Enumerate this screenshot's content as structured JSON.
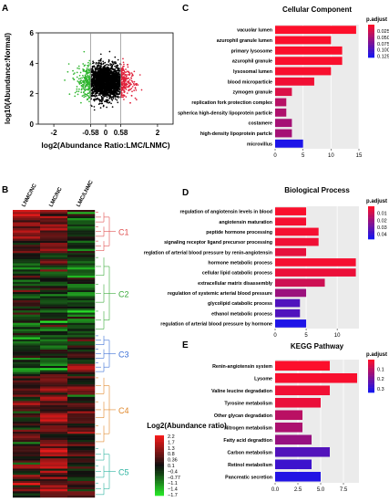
{
  "panels": {
    "A": {
      "letter": "A"
    },
    "B": {
      "letter": "B"
    },
    "C": {
      "letter": "C"
    },
    "D": {
      "letter": "D"
    },
    "E": {
      "letter": "E"
    }
  },
  "chart_data": [
    {
      "id": "A",
      "type": "scatter",
      "xlabel": "log2(Abundance Ratio:LMC/LNMC)",
      "ylabel": "log10(Abundance:Normal)",
      "xlim": [
        -2.6,
        2.6
      ],
      "ylim": [
        0,
        6
      ],
      "x_ticks": [
        "-2",
        "-0.58",
        "0",
        "0.58",
        "2"
      ],
      "x_tick_values": [
        -2,
        -0.58,
        0,
        0.58,
        2
      ],
      "y_ticks": [
        "0",
        "2",
        "4",
        "6"
      ],
      "y_tick_values": [
        0,
        2,
        4,
        6
      ],
      "thresholds": [
        -0.58,
        0.58
      ],
      "colors": {
        "down": "#2fb52f",
        "up": "#e0203a",
        "ns": "#000000"
      }
    },
    {
      "id": "B",
      "type": "heatmap",
      "columns": [
        "LNMC/NC",
        "LMC/NC",
        "LMC/LNMC"
      ],
      "clusters": [
        {
          "name": "C1",
          "color": "#e05050",
          "start": 0.0,
          "end": 0.15
        },
        {
          "name": "C2",
          "color": "#3aaa3a",
          "start": 0.15,
          "end": 0.43
        },
        {
          "name": "C3",
          "color": "#3b6fd6",
          "start": 0.43,
          "end": 0.57
        },
        {
          "name": "C4",
          "color": "#e0872a",
          "start": 0.57,
          "end": 0.82
        },
        {
          "name": "C5",
          "color": "#2bb3a0",
          "start": 0.82,
          "end": 1.0
        }
      ],
      "legend_title": "Log2(Abundance ratio)",
      "legend_ticks": [
        "2.2",
        "1.7",
        "1.3",
        "0.8",
        "0.36",
        "0.1",
        "−0.4",
        "−0.77",
        "−1.1",
        "−1.4",
        "−1.7"
      ]
    },
    {
      "id": "C",
      "type": "bar",
      "title": "Cellular Component",
      "legend_title": "p.adjust",
      "categories": [
        "vacuolar lumen",
        "azurophil granule lumen",
        "primary lysosome",
        "azurophil granule",
        "lysosomal lumen",
        "blood microparticle",
        "zymogen granule",
        "replication fork protection complex",
        "spherica high-density lipoprotein particle",
        "costamere",
        "high-density lipoprotein partcle",
        "microvillus"
      ],
      "values": [
        14.5,
        10,
        12,
        12,
        10,
        7,
        3,
        2,
        2,
        3,
        3,
        5
      ],
      "padj": [
        0.001,
        0.002,
        0.002,
        0.003,
        0.004,
        0.008,
        0.02,
        0.04,
        0.045,
        0.05,
        0.05,
        0.125
      ],
      "xlim": [
        0,
        15
      ],
      "x_ticks": [
        "0",
        "5",
        "10",
        "15"
      ],
      "x_tick_values": [
        0,
        5,
        10,
        15
      ],
      "legend_ticks": [
        "0.025",
        "0.050",
        "0.075",
        "0.100",
        "0.125"
      ],
      "legend_tick_values": [
        0.025,
        0.05,
        0.075,
        0.1,
        0.125
      ],
      "color_range": [
        0.0,
        0.13
      ]
    },
    {
      "id": "D",
      "type": "bar",
      "title": "Biological Process",
      "legend_title": "p.adjust",
      "categories": [
        "regulation of angiotensin levels in blood",
        "angiotensin maturation",
        "peptide hormone processing",
        "signaling receptor ligand precursor processing",
        "reglation of arterial blood pressure by renin-angiotensin",
        "hormone metabolic process",
        "cellular lipid catabolic process",
        "extracellular matrix disassembly",
        "regulation of systemic arterial blood pressure",
        "glycolipid catabolic process",
        "ethanol metabolic process",
        "regulation of arterial blood pressure by hormone"
      ],
      "values": [
        5,
        5,
        7,
        7,
        5,
        13,
        13,
        8,
        5,
        4,
        4,
        5
      ],
      "padj": [
        0.001,
        0.002,
        0.002,
        0.003,
        0.005,
        0.002,
        0.004,
        0.01,
        0.02,
        0.035,
        0.035,
        0.045
      ],
      "xlim": [
        0,
        13.5
      ],
      "x_ticks": [
        "0",
        "5",
        "10"
      ],
      "x_tick_values": [
        0,
        5,
        10
      ],
      "legend_ticks": [
        "0.01",
        "0.02",
        "0.03",
        "0.04"
      ],
      "legend_tick_values": [
        0.01,
        0.02,
        0.03,
        0.04
      ],
      "color_range": [
        0.0,
        0.047
      ]
    },
    {
      "id": "E",
      "type": "bar",
      "title": "KEGG Pathway",
      "legend_title": "p.adjust",
      "categories": [
        "Renin-angiotensin system",
        "Lysome",
        "Valine leucine degradation",
        "Tyrosine metabolism",
        "Other glycan degradation",
        "Nitrogen metabolism",
        "Fatty acid degradtion",
        "Carbon metabolism",
        "Retinol metabolism",
        "Pancreatic secretion"
      ],
      "values": [
        6,
        9,
        6,
        5,
        3,
        3,
        4,
        6,
        4,
        5
      ],
      "padj": [
        0.005,
        0.01,
        0.02,
        0.03,
        0.1,
        0.12,
        0.15,
        0.25,
        0.28,
        0.32
      ],
      "xlim": [
        0,
        9.2
      ],
      "x_ticks": [
        "0.0",
        "2.5",
        "5.0",
        "7.5"
      ],
      "x_tick_values": [
        0,
        2.5,
        5,
        7.5
      ],
      "legend_ticks": [
        "0.1",
        "0.2",
        "0.3"
      ],
      "legend_tick_values": [
        0.1,
        0.2,
        0.3
      ],
      "color_range": [
        0.0,
        0.34
      ]
    }
  ]
}
